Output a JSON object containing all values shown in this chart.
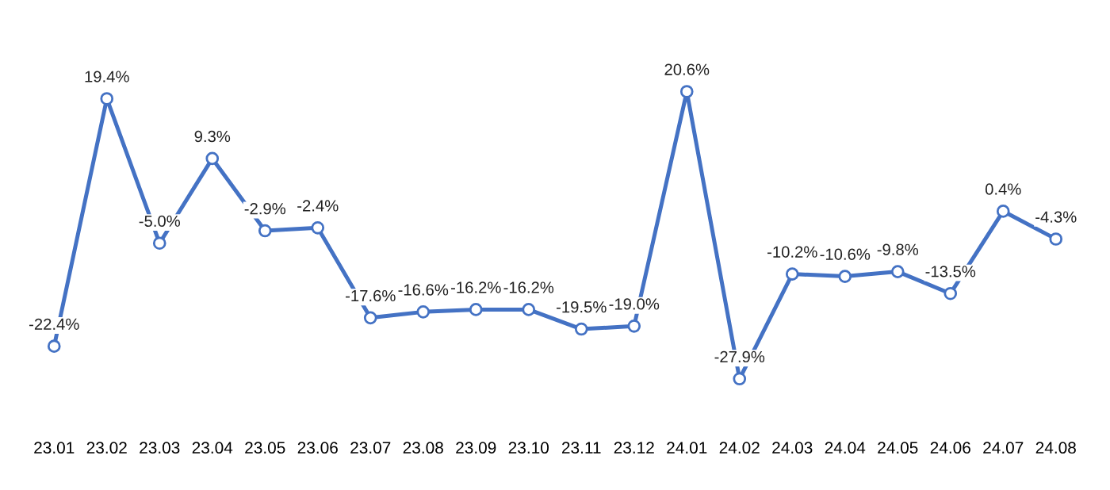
{
  "chart_data": {
    "type": "line",
    "categories": [
      "23.01",
      "23.02",
      "23.03",
      "23.04",
      "23.05",
      "23.06",
      "23.07",
      "23.08",
      "23.09",
      "23.10",
      "23.11",
      "23.12",
      "24.01",
      "24.02",
      "24.03",
      "24.04",
      "24.05",
      "24.06",
      "24.07",
      "24.08"
    ],
    "series": [
      {
        "color": "#4472c4",
        "values": [
          -22.4,
          19.4,
          -5.0,
          9.3,
          -2.9,
          -2.4,
          -17.6,
          -16.6,
          -16.2,
          -16.2,
          -19.5,
          -19.0,
          20.6,
          -27.9,
          -10.2,
          -10.6,
          -9.8,
          -13.5,
          0.4,
          -4.3
        ],
        "value_labels": [
          "-22.4%",
          "19.4%",
          "-5.0%",
          "9.3%",
          "-2.9%",
          "-2.4%",
          "-17.6%",
          "-16.6%",
          "-16.2%",
          "-16.2%",
          "-19.5%",
          "-19.0%",
          "20.6%",
          "-27.9%",
          "-10.2%",
          "-10.6%",
          "-9.8%",
          "-13.5%",
          "0.4%",
          "-4.3%"
        ]
      }
    ],
    "marker": "circle",
    "line_style": "solid",
    "grid": false,
    "legend": false,
    "tick_labels": "x"
  }
}
